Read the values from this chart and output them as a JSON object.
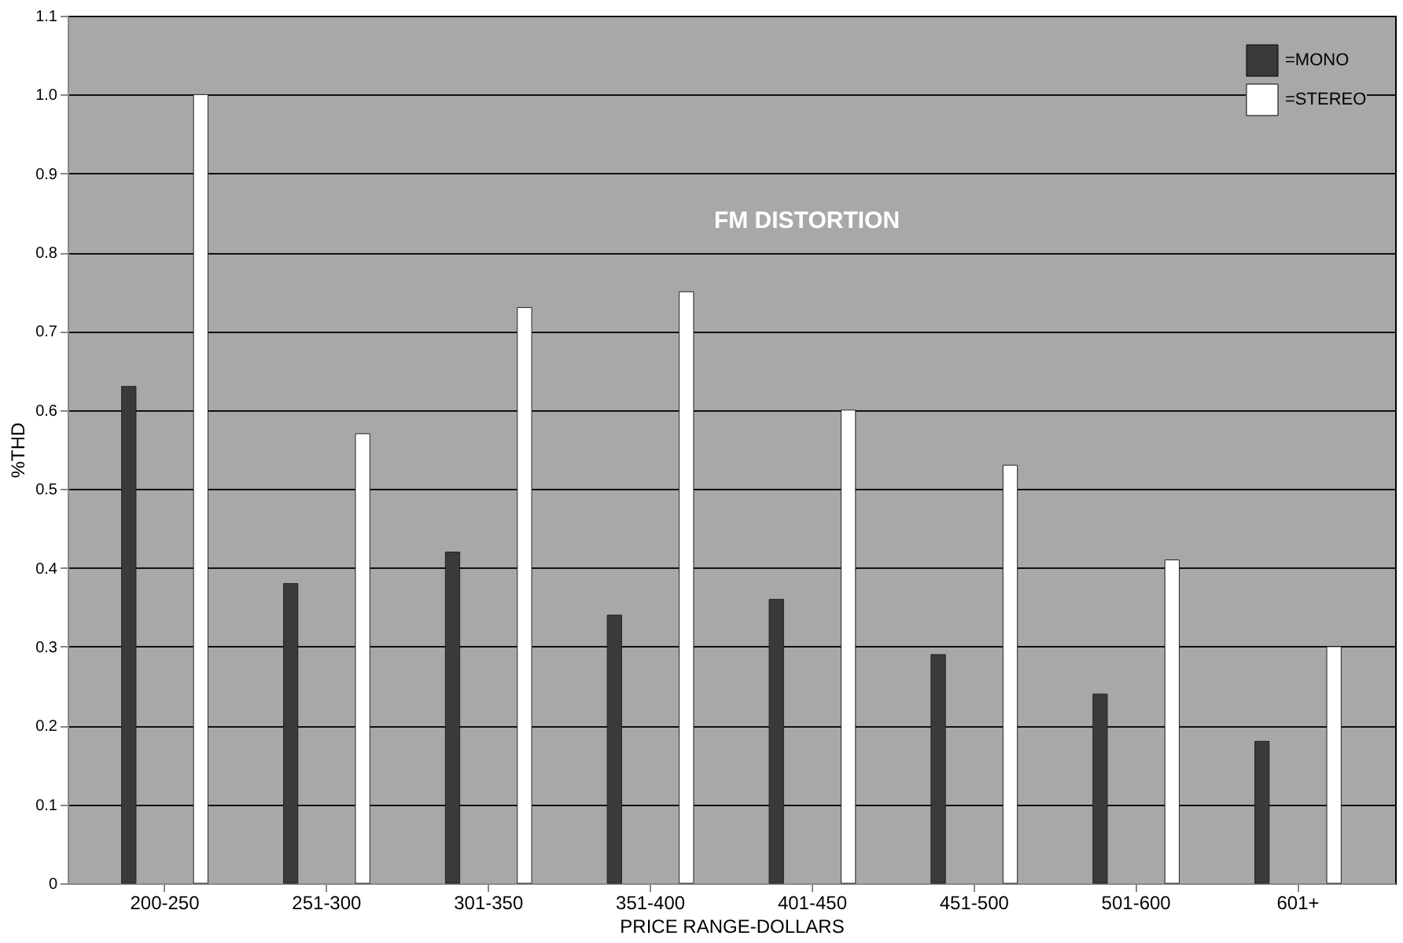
{
  "chart_data": {
    "type": "bar",
    "title": "FM DISTORTION",
    "xlabel": "PRICE RANGE-DOLLARS",
    "ylabel": "%THD",
    "categories": [
      "200-250",
      "251-300",
      "301-350",
      "351-400",
      "401-450",
      "451-500",
      "501-600",
      "601+"
    ],
    "series": [
      {
        "name": "=MONO",
        "color": "#3a3a3a",
        "values": [
          0.63,
          0.38,
          0.42,
          0.34,
          0.36,
          0.29,
          0.24,
          0.18
        ]
      },
      {
        "name": "=STEREO",
        "color": "#ffffff",
        "values": [
          1.0,
          0.57,
          0.73,
          0.75,
          0.6,
          0.53,
          0.41,
          0.3
        ]
      }
    ],
    "ylim": [
      0,
      1.1
    ],
    "yticks": [
      0,
      0.1,
      0.2,
      0.3,
      0.4,
      0.5,
      0.6,
      0.7,
      0.8,
      0.9,
      {
        "value": 1,
        "label": "1.0"
      },
      1.1
    ],
    "grid": "y",
    "legend": "top right"
  }
}
